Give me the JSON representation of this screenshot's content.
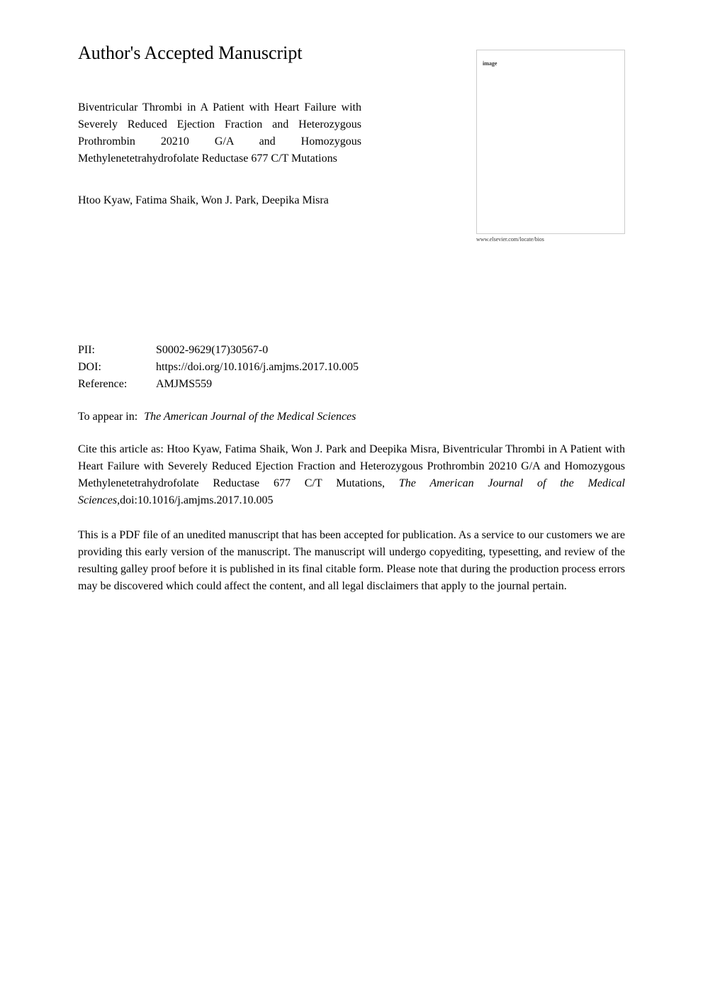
{
  "heading": "Author's Accepted Manuscript",
  "article_title": "Biventricular Thrombi in A Patient with Heart Failure with Severely Reduced Ejection Fraction and Heterozygous Prothrombin 20210 G/A and Homozygous Methylenetetrahydrofolate Reductase 677 C/T Mutations",
  "authors": "Htoo Kyaw, Fatima Shaik, Won J. Park, Deepika Misra",
  "image_box": {
    "label": "image",
    "website": "www.elsevier.com/locate/bios"
  },
  "metadata": {
    "pii": {
      "label": "PII:",
      "value": "S0002-9629(17)30567-0"
    },
    "doi": {
      "label": "DOI:",
      "value": "https://doi.org/10.1016/j.amjms.2017.10.005"
    },
    "reference": {
      "label": "Reference:",
      "value": "AMJMS559"
    }
  },
  "appear_in": {
    "label": "To appear in:",
    "journal": "The American Journal of the Medical Sciences"
  },
  "citation": {
    "prefix": "Cite this article as: Htoo Kyaw, Fatima Shaik, Won J. Park and Deepika Misra, Biventricular Thrombi in A Patient with Heart Failure with Severely Reduced Ejection Fraction and Heterozygous Prothrombin 20210 G/A and Homozygous Methylenetetrahydrofolate Reductase 677 C/T Mutations, ",
    "journal": "The American Journal of the Medical Sciences,",
    "suffix": "doi:10.1016/j.amjms.2017.10.005"
  },
  "disclaimer": "This is a PDF file of an unedited manuscript that has been accepted for publication. As a service to our customers we are providing this early version of the manuscript. The manuscript will undergo copyediting, typesetting, and review of the resulting galley proof before it is published in its final citable form. Please note that during the production process errors may be discovered which could affect the content, and all legal disclaimers that apply to the journal pertain.",
  "colors": {
    "text": "#000000",
    "background": "#ffffff",
    "border": "#cccccc",
    "small_text": "#333333"
  },
  "typography": {
    "heading_fontsize": 26,
    "body_fontsize": 16,
    "small_fontsize": 8,
    "font_family": "Georgia, Times New Roman, serif"
  }
}
